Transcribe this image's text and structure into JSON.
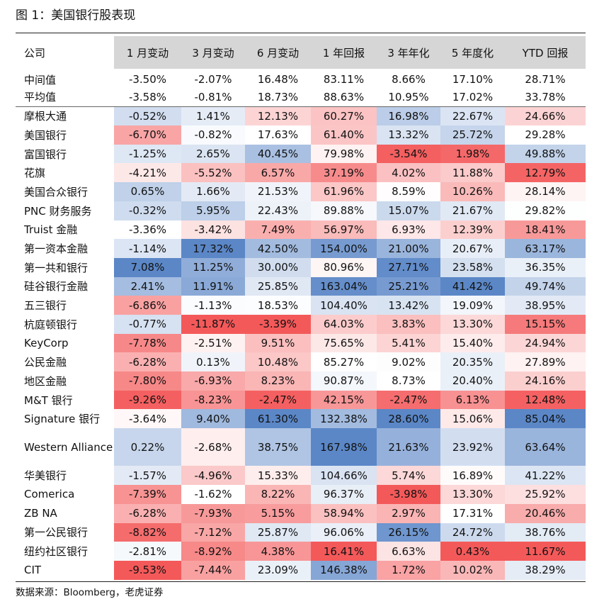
{
  "title": "图 1：美国银行股表现",
  "source": "数据来源：Bloomberg，老虎证券",
  "colors": {
    "header_bg": "#d6d6d6",
    "negative": "#f4595a",
    "positive": "#5b87c7",
    "neutral": "#ffffff"
  },
  "columns": [
    "公司",
    "1 月变动",
    "3 月变动",
    "6 月变动",
    "1 年回报",
    "3 年年化",
    "5 年度化",
    "YTD 回报"
  ],
  "summary": [
    {
      "name": "中间值",
      "values": [
        "-3.50%",
        "-2.07%",
        "16.48%",
        "83.11%",
        "8.66%",
        "17.10%",
        "28.71%"
      ]
    },
    {
      "name": "平均值",
      "values": [
        "-3.58%",
        "-0.81%",
        "18.73%",
        "88.63%",
        "10.95%",
        "17.02%",
        "33.78%"
      ]
    }
  ],
  "rows": [
    {
      "name": "摩根大通",
      "values": [
        "-0.52%",
        "1.41%",
        "12.13%",
        "60.27%",
        "16.98%",
        "22.67%",
        "24.66%"
      ]
    },
    {
      "name": "美国银行",
      "values": [
        "-6.70%",
        "-0.82%",
        "17.63%",
        "61.40%",
        "13.32%",
        "25.72%",
        "29.28%"
      ]
    },
    {
      "name": "富国银行",
      "values": [
        "-1.25%",
        "2.65%",
        "40.45%",
        "79.98%",
        "-3.54%",
        "1.98%",
        "49.88%"
      ]
    },
    {
      "name": "花旗",
      "values": [
        "-4.21%",
        "-5.52%",
        "6.57%",
        "37.19%",
        "4.02%",
        "11.88%",
        "12.79%"
      ]
    },
    {
      "name": "美国合众银行",
      "values": [
        "0.65%",
        "1.66%",
        "21.53%",
        "61.96%",
        "8.59%",
        "10.26%",
        "28.14%"
      ]
    },
    {
      "name": "PNC 财务服务",
      "values": [
        "-0.32%",
        "5.95%",
        "22.43%",
        "89.88%",
        "15.07%",
        "21.67%",
        "29.82%"
      ]
    },
    {
      "name": "Truist 金融",
      "values": [
        "-3.36%",
        "-3.42%",
        "7.49%",
        "56.97%",
        "6.93%",
        "12.39%",
        "18.41%"
      ]
    },
    {
      "name": "第一资本金融",
      "values": [
        "-1.14%",
        "17.32%",
        "42.50%",
        "154.00%",
        "21.00%",
        "20.67%",
        "63.17%"
      ]
    },
    {
      "name": "第一共和银行",
      "values": [
        "7.08%",
        "11.25%",
        "30.00%",
        "80.96%",
        "27.71%",
        "23.58%",
        "36.35%"
      ]
    },
    {
      "name": "硅谷银行金融",
      "values": [
        "2.41%",
        "11.91%",
        "25.85%",
        "163.04%",
        "25.21%",
        "41.42%",
        "49.74%"
      ]
    },
    {
      "name": "五三银行",
      "values": [
        "-6.86%",
        "-1.13%",
        "18.53%",
        "104.40%",
        "13.42%",
        "19.09%",
        "38.95%"
      ]
    },
    {
      "name": "杭庭顿银行",
      "values": [
        "-0.77%",
        "-11.87%",
        "-3.39%",
        "64.03%",
        "3.83%",
        "13.30%",
        "15.15%"
      ]
    },
    {
      "name": "KeyCorp",
      "values": [
        "-7.78%",
        "-2.51%",
        "9.51%",
        "75.65%",
        "5.41%",
        "15.40%",
        "24.94%"
      ]
    },
    {
      "name": "公民金融",
      "values": [
        "-6.28%",
        "0.13%",
        "10.48%",
        "85.27%",
        "9.02%",
        "20.35%",
        "27.89%"
      ]
    },
    {
      "name": "地区金融",
      "values": [
        "-7.80%",
        "-6.93%",
        "8.23%",
        "90.87%",
        "8.73%",
        "20.40%",
        "24.16%"
      ]
    },
    {
      "name": "M&T  银行",
      "values": [
        "-9.26%",
        "-8.23%",
        "-2.47%",
        "42.15%",
        "-2.47%",
        "6.13%",
        "12.48%"
      ]
    },
    {
      "name": "Signature 银行",
      "values": [
        "-3.64%",
        "9.40%",
        "61.30%",
        "132.38%",
        "28.60%",
        "15.06%",
        "85.04%"
      ]
    },
    {
      "name": "Western Alliance",
      "values": [
        "0.22%",
        "-2.68%",
        "38.75%",
        "167.98%",
        "21.63%",
        "23.92%",
        "63.64%"
      ]
    },
    {
      "name": "华美银行",
      "values": [
        "-1.57%",
        "-4.96%",
        "15.33%",
        "104.66%",
        "5.74%",
        "16.89%",
        "41.22%"
      ]
    },
    {
      "name": "Comerica",
      "values": [
        "-7.39%",
        "-1.62%",
        "8.22%",
        "96.37%",
        "-3.98%",
        "13.30%",
        "25.92%"
      ]
    },
    {
      "name": "ZB NA",
      "values": [
        "-6.28%",
        "-7.93%",
        "5.15%",
        "58.94%",
        "2.97%",
        "17.31%",
        "20.46%"
      ]
    },
    {
      "name": "第一公民银行",
      "values": [
        "-8.82%",
        "-7.12%",
        "25.87%",
        "96.06%",
        "26.15%",
        "24.72%",
        "38.76%"
      ]
    },
    {
      "name": "纽约社区银行",
      "values": [
        "-2.81%",
        "-8.92%",
        "4.38%",
        "16.41%",
        "6.63%",
        "0.43%",
        "11.67%"
      ]
    },
    {
      "name": "CIT",
      "values": [
        "-9.53%",
        "-7.44%",
        "23.09%",
        "146.38%",
        "1.72%",
        "10.02%",
        "38.29%"
      ]
    }
  ]
}
